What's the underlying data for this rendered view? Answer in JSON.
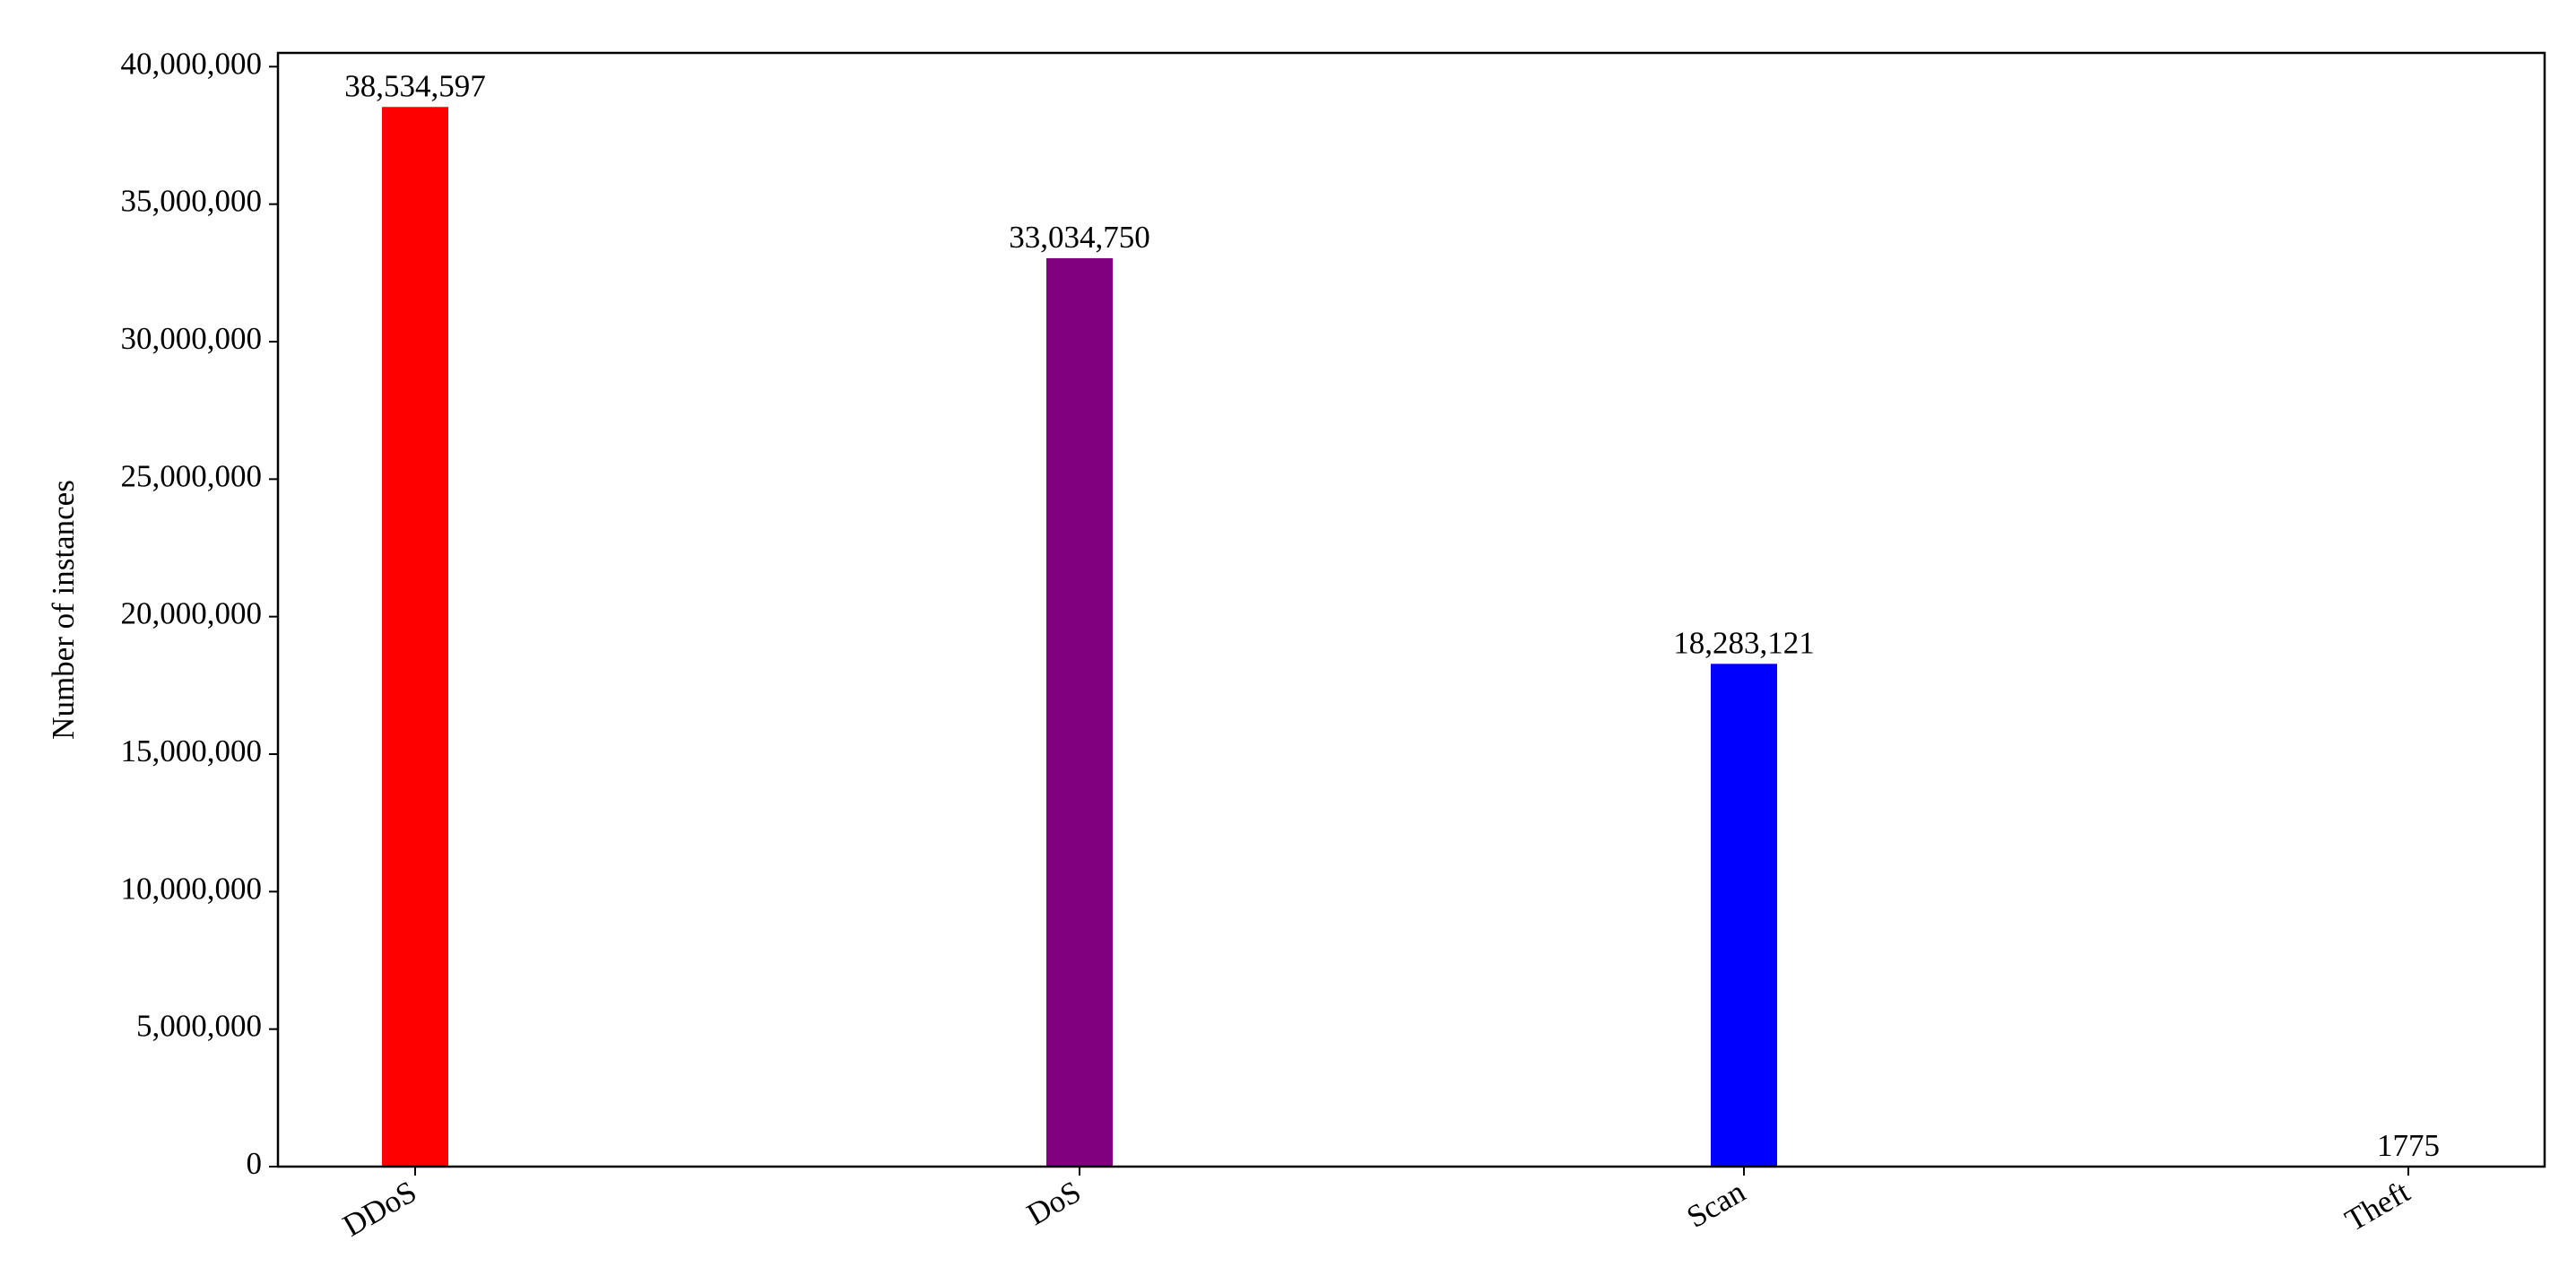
{
  "chart_data": {
    "type": "bar",
    "y_label": "Number of instances",
    "categories": [
      "DDoS",
      "DoS",
      "Scan",
      "Theft"
    ],
    "values": [
      38534597,
      33034750,
      18283121,
      1775
    ],
    "value_labels": [
      "38,534,597",
      "33,034,750",
      "18,283,121",
      "1775"
    ],
    "colors": [
      "#ff0000",
      "#800080",
      "#0000ff",
      "#008000"
    ],
    "ylim": [
      0,
      40500000
    ],
    "yticks": [
      {
        "value": 0,
        "label": "0"
      },
      {
        "value": 5000000,
        "label": "5,000,000"
      },
      {
        "value": 10000000,
        "label": "10,000,000"
      },
      {
        "value": 15000000,
        "label": "15,000,000"
      },
      {
        "value": 20000000,
        "label": "20,000,000"
      },
      {
        "value": 25000000,
        "label": "25,000,000"
      },
      {
        "value": 30000000,
        "label": "30,000,000"
      },
      {
        "value": 35000000,
        "label": "35,000,000"
      },
      {
        "value": 40000000,
        "label": "40,000,000"
      }
    ]
  }
}
